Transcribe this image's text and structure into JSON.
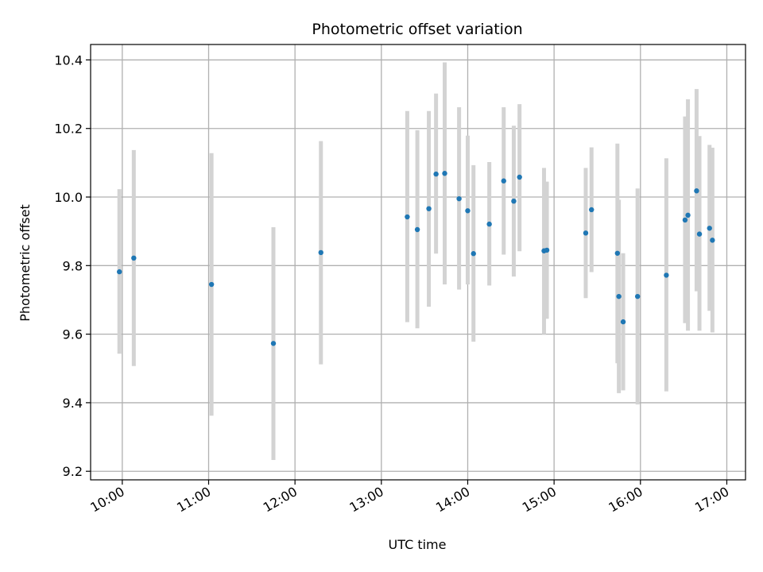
{
  "chart_data": {
    "type": "scatter",
    "title": "Photometric offset variation",
    "xlabel": "UTC time",
    "ylabel": "Photometric offset",
    "x_range": [
      "09:38",
      "17:13"
    ],
    "ylim": [
      9.175,
      10.445
    ],
    "x_ticks": [
      "10:00",
      "11:00",
      "12:00",
      "13:00",
      "14:00",
      "15:00",
      "16:00",
      "17:00"
    ],
    "y_ticks": [
      9.2,
      9.4,
      9.6,
      9.8,
      10.0,
      10.2,
      10.4
    ],
    "y_tick_labels": [
      "9.2",
      "9.4",
      "9.6",
      "9.8",
      "10.0",
      "10.2",
      "10.4"
    ],
    "grid": true,
    "colors": {
      "point": "#1f77b4",
      "errorbar": "#d3d3d3",
      "grid": "#b0b0b0"
    },
    "points": [
      {
        "x": "09:58",
        "y": 9.782,
        "low": 9.543,
        "high": 10.023
      },
      {
        "x": "10:08",
        "y": 9.822,
        "low": 9.507,
        "high": 10.137
      },
      {
        "x": "11:02",
        "y": 9.745,
        "low": 9.362,
        "high": 10.128
      },
      {
        "x": "11:45",
        "y": 9.573,
        "low": 9.233,
        "high": 9.912
      },
      {
        "x": "12:18",
        "y": 9.838,
        "low": 9.512,
        "high": 10.163
      },
      {
        "x": "13:18",
        "y": 9.942,
        "low": 9.635,
        "high": 10.251
      },
      {
        "x": "13:25",
        "y": 9.905,
        "low": 9.617,
        "high": 10.195
      },
      {
        "x": "13:33",
        "y": 9.966,
        "low": 9.68,
        "high": 10.251
      },
      {
        "x": "13:38",
        "y": 10.067,
        "low": 9.835,
        "high": 10.302
      },
      {
        "x": "13:44",
        "y": 10.069,
        "low": 9.745,
        "high": 10.393
      },
      {
        "x": "13:54",
        "y": 9.995,
        "low": 9.73,
        "high": 10.262
      },
      {
        "x": "14:00",
        "y": 9.96,
        "low": 9.745,
        "high": 10.179
      },
      {
        "x": "14:04",
        "y": 9.835,
        "low": 9.578,
        "high": 10.093
      },
      {
        "x": "14:15",
        "y": 9.921,
        "low": 9.742,
        "high": 10.102
      },
      {
        "x": "14:25",
        "y": 10.047,
        "low": 9.832,
        "high": 10.262
      },
      {
        "x": "14:32",
        "y": 9.988,
        "low": 9.768,
        "high": 10.208
      },
      {
        "x": "14:36",
        "y": 10.058,
        "low": 9.842,
        "high": 10.271
      },
      {
        "x": "14:53",
        "y": 9.843,
        "low": 9.6,
        "high": 10.085
      },
      {
        "x": "14:55",
        "y": 9.845,
        "low": 9.645,
        "high": 10.045
      },
      {
        "x": "15:22",
        "y": 9.895,
        "low": 9.705,
        "high": 10.085
      },
      {
        "x": "15:26",
        "y": 9.963,
        "low": 9.781,
        "high": 10.145
      },
      {
        "x": "15:44",
        "y": 9.836,
        "low": 9.515,
        "high": 10.156
      },
      {
        "x": "15:45",
        "y": 9.71,
        "low": 9.428,
        "high": 9.992
      },
      {
        "x": "15:48",
        "y": 9.636,
        "low": 9.436,
        "high": 9.836
      },
      {
        "x": "15:58",
        "y": 9.71,
        "low": 9.395,
        "high": 10.025
      },
      {
        "x": "16:18",
        "y": 9.772,
        "low": 9.433,
        "high": 10.113
      },
      {
        "x": "16:31",
        "y": 9.933,
        "low": 9.632,
        "high": 10.235
      },
      {
        "x": "16:33",
        "y": 9.947,
        "low": 9.61,
        "high": 10.285
      },
      {
        "x": "16:39",
        "y": 10.018,
        "low": 9.725,
        "high": 10.315
      },
      {
        "x": "16:41",
        "y": 9.892,
        "low": 9.61,
        "high": 10.178
      },
      {
        "x": "16:48",
        "y": 9.909,
        "low": 9.668,
        "high": 10.152
      },
      {
        "x": "16:50",
        "y": 9.874,
        "low": 9.605,
        "high": 10.144
      }
    ]
  }
}
